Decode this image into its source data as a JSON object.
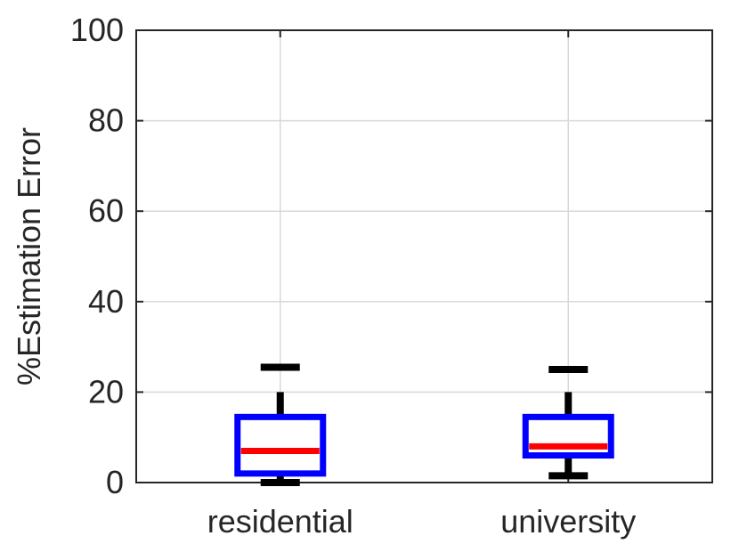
{
  "chart_data": {
    "type": "box",
    "title": "",
    "xlabel": "",
    "ylabel": "%Estimation Error",
    "ylim": [
      0,
      100
    ],
    "yticks": [
      0,
      20,
      40,
      60,
      80,
      100
    ],
    "grid": true,
    "categories": [
      "residential",
      "university"
    ],
    "boxes": [
      {
        "category": "residential",
        "whisker_low": 0,
        "q1": 2,
        "median": 7,
        "q3": 14.5,
        "whisker_high": 20,
        "outlier_cap": 25.5
      },
      {
        "category": "university",
        "whisker_low": 1.5,
        "q1": 6,
        "median": 8,
        "q3": 14.5,
        "whisker_high": 20,
        "outlier_cap": 25
      }
    ],
    "colors": {
      "box": "#0000ff",
      "median": "#ff0000",
      "whisker": "#000000",
      "grid": "#d9d9d9",
      "axis": "#262626"
    }
  }
}
